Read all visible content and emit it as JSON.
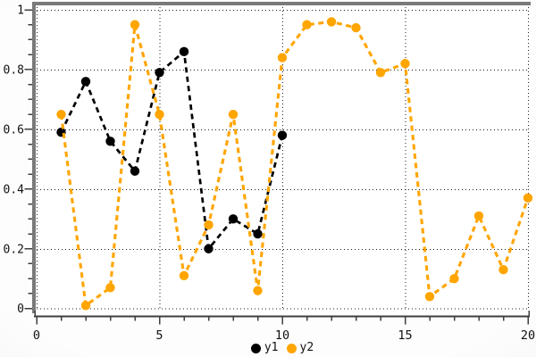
{
  "chart_data": {
    "type": "line",
    "title": "",
    "xlabel": "",
    "ylabel": "",
    "line_style": "dashed",
    "marker": "circle",
    "grid": true,
    "legend_position": "bottom-center",
    "xlim": [
      0,
      20
    ],
    "ylim": [
      0,
      1
    ],
    "x_major_ticks": [
      0,
      5,
      10,
      15,
      20
    ],
    "x_tick_labels": [
      "0",
      "5",
      "10",
      "15",
      "20"
    ],
    "x_minor_step": 1,
    "y_major_ticks": [
      0,
      0.2,
      0.4,
      0.6,
      0.8,
      1
    ],
    "y_tick_labels": [
      "0",
      "0.2",
      "0.4",
      "0.6",
      "0.8",
      "1"
    ],
    "y_minor_step": 0.05,
    "series": [
      {
        "name": "y1",
        "color": "#000000",
        "x": [
          1,
          2,
          3,
          4,
          5,
          6,
          7,
          8,
          9,
          10
        ],
        "values": [
          0.59,
          0.76,
          0.56,
          0.46,
          0.79,
          0.86,
          0.2,
          0.3,
          0.25,
          0.58
        ]
      },
      {
        "name": "y2",
        "color": "#ffa500",
        "x": [
          1,
          2,
          3,
          4,
          5,
          6,
          7,
          8,
          9,
          10,
          11,
          12,
          13,
          14,
          15,
          16,
          17,
          18,
          19,
          20
        ],
        "values": [
          0.65,
          0.01,
          0.07,
          0.95,
          0.65,
          0.11,
          0.28,
          0.65,
          0.06,
          0.84,
          0.95,
          0.96,
          0.94,
          0.79,
          0.82,
          0.04,
          0.1,
          0.31,
          0.13,
          0.37
        ]
      }
    ]
  },
  "colors": {
    "plot_background": "#ffffff",
    "axis_spine": "#7a7a7a",
    "axis_line": "#3f3f3f",
    "gridline": "#1c1c1c",
    "tick_label": "#111111"
  }
}
